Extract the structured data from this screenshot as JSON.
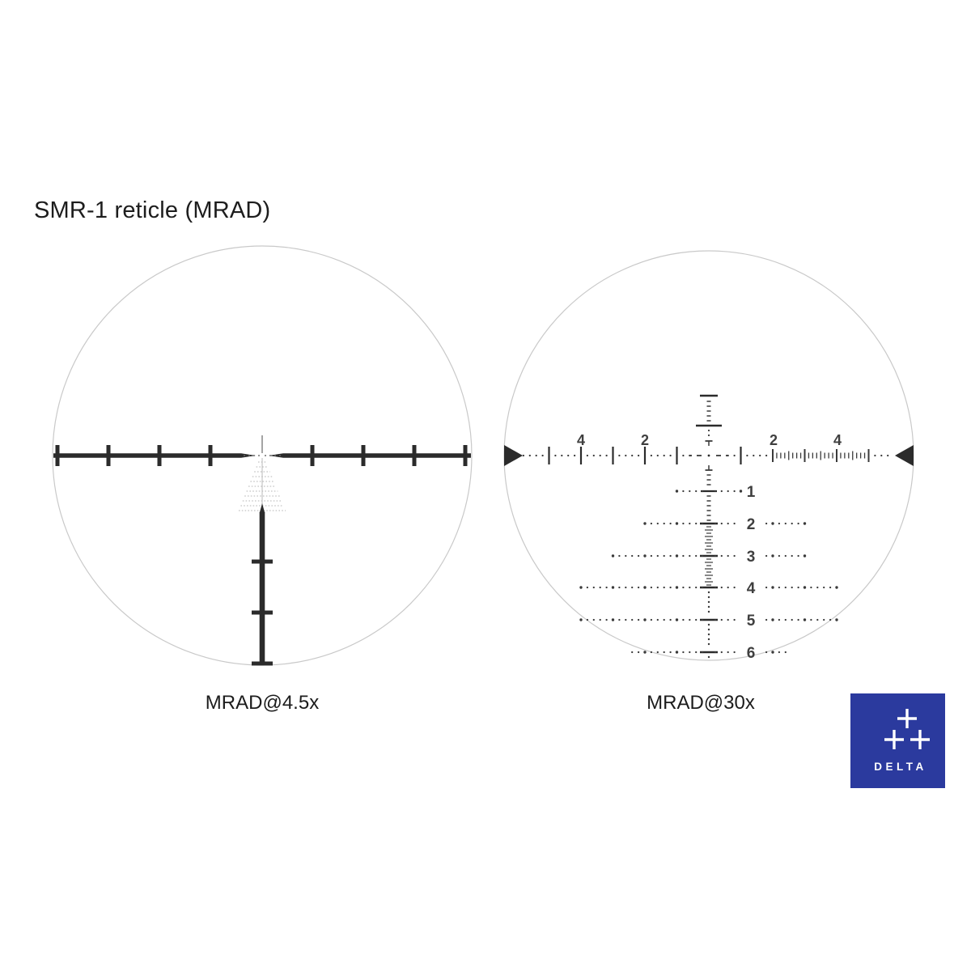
{
  "title": "SMR-1 reticle (MRAD)",
  "left_reticle": {
    "caption": "MRAD@4.5x"
  },
  "right_reticle": {
    "caption": "MRAD@30x",
    "axis_labels": [
      {
        "text": "4"
      },
      {
        "text": "2"
      },
      {
        "text": "2"
      },
      {
        "text": "4"
      }
    ],
    "drop_labels": [
      "1",
      "2",
      "3",
      "4",
      "5",
      "6"
    ]
  },
  "logo": {
    "text": "DELTA",
    "background": "#2b3a9e",
    "foreground": "#ffffff"
  },
  "colors": {
    "reticle_ink": "#2b2b2b",
    "fine_ink": "#3a3a3a",
    "circle_outline": "#c9c9c9",
    "faint_tree": "#b5b5b5",
    "number_ink": "#3f3f3f"
  }
}
